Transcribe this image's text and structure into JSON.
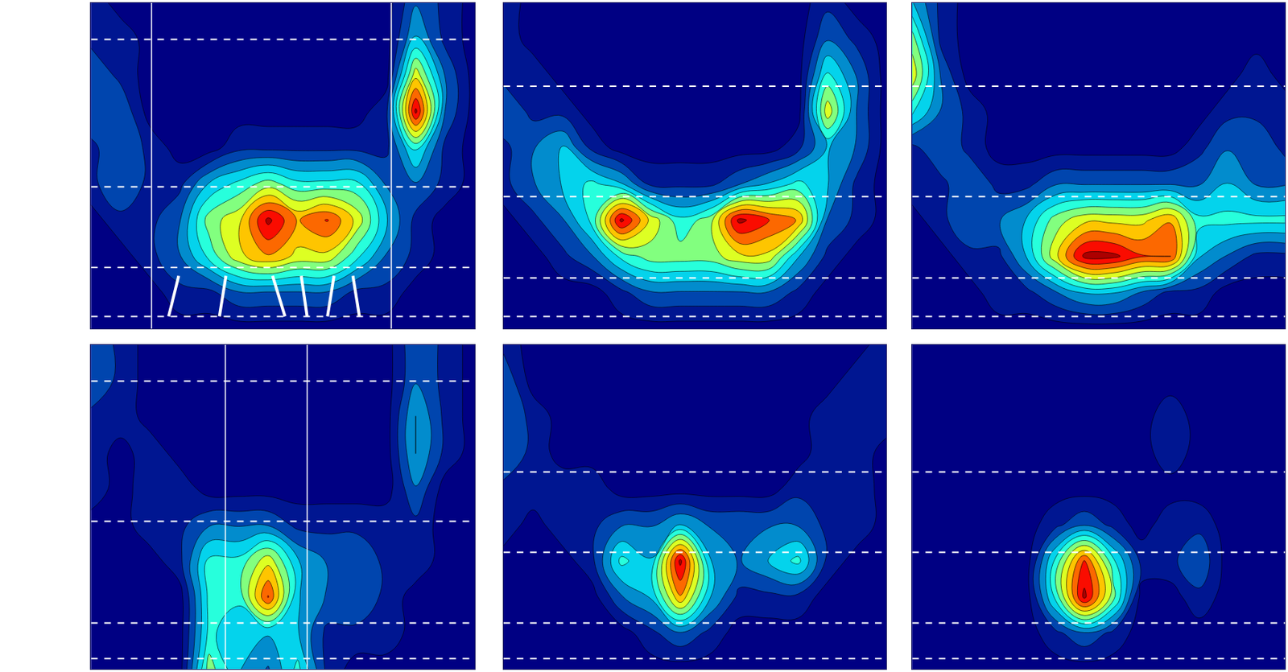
{
  "chart_data": [
    {
      "type": "contour",
      "xlim": [
        0,
        13
      ],
      "ylim": [
        0,
        9
      ],
      "zlim": [
        0,
        10
      ],
      "tick_labels": false,
      "hlines": [
        7.99,
        3.92,
        1.69,
        0.34
      ],
      "vlines": [
        2.05,
        10.17
      ],
      "strokes": [
        [
          2.63,
          0.34,
          2.97,
          1.46
        ],
        [
          4.35,
          0.34,
          4.57,
          1.46
        ],
        [
          6.57,
          0.34,
          6.15,
          1.46
        ],
        [
          7.32,
          0.34,
          7.12,
          1.46
        ],
        [
          8.01,
          0.34,
          8.23,
          1.46
        ],
        [
          9.09,
          0.34,
          8.87,
          1.46
        ]
      ],
      "cells": [
        [
          0,
          0,
          0,
          0,
          0,
          0,
          0,
          0,
          0,
          0,
          0,
          0,
          0,
          0
        ],
        [
          0,
          0,
          0,
          1,
          1,
          2,
          2,
          2,
          2,
          1,
          1,
          0,
          0,
          0
        ],
        [
          0,
          0,
          1,
          2,
          4,
          6,
          7,
          6,
          6,
          4,
          2,
          1,
          0,
          0
        ],
        [
          0,
          1,
          1,
          2,
          5,
          6,
          9,
          7,
          8,
          6,
          3,
          1,
          0,
          0
        ],
        [
          1,
          2,
          1,
          1,
          3,
          4,
          5,
          4,
          4,
          4,
          2,
          2,
          1,
          0
        ],
        [
          1,
          2,
          1,
          0,
          0,
          1,
          1,
          1,
          1,
          1,
          1,
          4,
          1,
          0
        ],
        [
          2,
          2,
          0,
          0,
          0,
          0,
          0,
          0,
          0,
          0,
          1,
          9,
          2,
          0
        ],
        [
          2,
          1,
          0,
          0,
          0,
          0,
          0,
          0,
          0,
          0,
          0,
          6,
          2,
          0
        ],
        [
          1,
          1,
          0,
          0,
          0,
          0,
          0,
          0,
          0,
          0,
          0,
          3,
          1,
          0
        ],
        [
          1,
          0,
          0,
          0,
          0,
          0,
          0,
          0,
          0,
          0,
          0,
          2,
          1,
          0
        ]
      ]
    },
    {
      "type": "contour",
      "xlim": [
        0,
        13
      ],
      "ylim": [
        0,
        9
      ],
      "zlim": [
        0,
        10
      ],
      "tick_labels": false,
      "hlines": [
        6.7,
        3.65,
        1.4,
        0.34
      ],
      "vlines": [],
      "strokes": [],
      "cells": [
        [
          0,
          0,
          0,
          0,
          0,
          0,
          0,
          0,
          0,
          0,
          0,
          0,
          0,
          0
        ],
        [
          0,
          0,
          0,
          0,
          1,
          2,
          2,
          2,
          2,
          2,
          1,
          0,
          0,
          0
        ],
        [
          0,
          0,
          1,
          2,
          4,
          5,
          5,
          5,
          6,
          6,
          3,
          1,
          0,
          0
        ],
        [
          0,
          1,
          2,
          4,
          9,
          6,
          4,
          5,
          9,
          8,
          7,
          2,
          1,
          0
        ],
        [
          1,
          2,
          3,
          4,
          3,
          1,
          1,
          1,
          2,
          3,
          4,
          3,
          1,
          0
        ],
        [
          1,
          2,
          3,
          1,
          0,
          0,
          0,
          0,
          0,
          0,
          1,
          3,
          2,
          0
        ],
        [
          2,
          1,
          1,
          0,
          0,
          0,
          0,
          0,
          0,
          0,
          0,
          6,
          2,
          0
        ],
        [
          1,
          1,
          0,
          0,
          0,
          0,
          0,
          0,
          0,
          0,
          0,
          4,
          2,
          0
        ],
        [
          1,
          0,
          0,
          0,
          0,
          0,
          0,
          0,
          0,
          0,
          0,
          2,
          1,
          0
        ],
        [
          1,
          0,
          0,
          0,
          0,
          0,
          0,
          0,
          0,
          0,
          0,
          1,
          0,
          0
        ]
      ]
    },
    {
      "type": "contour",
      "xlim": [
        0,
        13
      ],
      "ylim": [
        0,
        9
      ],
      "zlim": [
        0,
        10
      ],
      "tick_labels": false,
      "hlines": [
        6.7,
        3.65,
        1.4,
        0.34
      ],
      "vlines": [],
      "strokes": [],
      "cells": [
        [
          0,
          0,
          0,
          0,
          0,
          0,
          0,
          0,
          0,
          0,
          0,
          0,
          0,
          0
        ],
        [
          0,
          0,
          0,
          1,
          1,
          2,
          3,
          3,
          2,
          1,
          1,
          0,
          0,
          0
        ],
        [
          0,
          0,
          1,
          1,
          3,
          6,
          9,
          9,
          8,
          8,
          3,
          2,
          1,
          1
        ],
        [
          0,
          1,
          2,
          2,
          3,
          5,
          6,
          6,
          6,
          7,
          4,
          4,
          4,
          4
        ],
        [
          1,
          1,
          2,
          1,
          1,
          2,
          2,
          2,
          2,
          2,
          2,
          3,
          2,
          2
        ],
        [
          1,
          2,
          1,
          0,
          0,
          0,
          0,
          0,
          0,
          0,
          1,
          2,
          2,
          1
        ],
        [
          4,
          2,
          1,
          0,
          0,
          0,
          0,
          0,
          0,
          0,
          0,
          1,
          1,
          1
        ],
        [
          6,
          2,
          0,
          0,
          0,
          0,
          0,
          0,
          0,
          0,
          0,
          0,
          1,
          0
        ],
        [
          5,
          1,
          0,
          0,
          0,
          0,
          0,
          0,
          0,
          0,
          0,
          0,
          0,
          0
        ],
        [
          3,
          1,
          0,
          0,
          0,
          0,
          0,
          0,
          0,
          0,
          0,
          0,
          0,
          0
        ]
      ]
    },
    {
      "type": "contour",
      "xlim": [
        0,
        13
      ],
      "ylim": [
        0,
        9
      ],
      "zlim": [
        0,
        10
      ],
      "tick_labels": false,
      "hlines": [
        7.99,
        4.1,
        1.28,
        0.29
      ],
      "vlines": [
        4.55,
        7.32
      ],
      "strokes": [],
      "cells": [
        [
          0,
          0,
          0,
          0,
          5,
          3,
          2,
          4,
          1,
          0,
          0,
          0,
          0,
          0
        ],
        [
          0,
          0,
          0,
          0,
          4,
          3,
          3,
          3,
          1,
          1,
          1,
          0,
          0,
          0
        ],
        [
          0,
          0,
          0,
          0,
          4,
          4,
          8,
          3,
          2,
          2,
          1,
          0,
          0,
          0
        ],
        [
          0,
          0,
          0,
          1,
          4,
          4,
          6,
          3,
          2,
          2,
          1,
          1,
          0,
          0
        ],
        [
          0,
          0,
          1,
          1,
          2,
          2,
          2,
          1,
          1,
          1,
          1,
          1,
          0,
          0
        ],
        [
          1,
          0,
          1,
          1,
          0,
          0,
          0,
          0,
          0,
          0,
          0,
          2,
          0,
          0
        ],
        [
          1,
          0,
          1,
          0,
          0,
          0,
          0,
          0,
          0,
          0,
          0,
          3,
          1,
          0
        ],
        [
          1,
          1,
          0,
          0,
          0,
          0,
          0,
          0,
          0,
          0,
          0,
          3,
          1,
          0
        ],
        [
          2,
          1,
          0,
          0,
          0,
          0,
          0,
          0,
          0,
          0,
          0,
          2,
          1,
          0
        ],
        [
          2,
          1,
          0,
          0,
          0,
          0,
          0,
          0,
          0,
          0,
          0,
          2,
          1,
          0
        ]
      ]
    },
    {
      "type": "contour",
      "xlim": [
        0,
        13
      ],
      "ylim": [
        0,
        9
      ],
      "zlim": [
        0,
        10
      ],
      "tick_labels": false,
      "hlines": [
        5.47,
        3.24,
        1.28,
        0.29
      ],
      "vlines": [],
      "strokes": [],
      "cells": [
        [
          0,
          0,
          0,
          0,
          0,
          0,
          0,
          0,
          0,
          0,
          0,
          0,
          0,
          0
        ],
        [
          0,
          0,
          0,
          0,
          0,
          1,
          2,
          1,
          0,
          0,
          0,
          0,
          0,
          0
        ],
        [
          0,
          0,
          0,
          0,
          2,
          3,
          7,
          3,
          1,
          1,
          1,
          0,
          0,
          0
        ],
        [
          0,
          0,
          0,
          1,
          4,
          3,
          9,
          3,
          2,
          3,
          4,
          1,
          0,
          0
        ],
        [
          1,
          0,
          1,
          1,
          2,
          2,
          3,
          2,
          2,
          2,
          2,
          1,
          1,
          0
        ],
        [
          1,
          1,
          1,
          1,
          0,
          0,
          0,
          0,
          0,
          0,
          1,
          1,
          1,
          0
        ],
        [
          2,
          1,
          0,
          0,
          0,
          0,
          0,
          0,
          0,
          0,
          0,
          1,
          1,
          0
        ],
        [
          2,
          1,
          0,
          0,
          0,
          0,
          0,
          0,
          0,
          0,
          0,
          1,
          1,
          1
        ],
        [
          2,
          0,
          0,
          0,
          0,
          0,
          0,
          0,
          0,
          0,
          0,
          0,
          1,
          1
        ],
        [
          1,
          0,
          0,
          0,
          0,
          0,
          0,
          0,
          0,
          0,
          0,
          0,
          0,
          1
        ]
      ]
    },
    {
      "type": "contour",
      "xlim": [
        0,
        13
      ],
      "ylim": [
        0,
        9
      ],
      "zlim": [
        0,
        10
      ],
      "tick_labels": false,
      "hlines": [
        5.47,
        3.24,
        1.28,
        0.29
      ],
      "vlines": [],
      "strokes": [],
      "cells": [
        [
          0,
          0,
          0,
          0,
          0,
          0,
          0,
          0,
          0,
          0,
          0,
          0,
          0,
          0
        ],
        [
          0,
          0,
          0,
          0,
          0,
          1,
          2,
          1,
          0,
          0,
          0,
          0,
          0,
          0
        ],
        [
          0,
          0,
          0,
          0,
          0,
          4,
          9,
          5,
          0,
          0,
          1,
          0,
          0,
          0
        ],
        [
          0,
          0,
          0,
          0,
          0,
          4,
          8,
          4,
          1,
          1,
          2,
          0,
          0,
          0
        ],
        [
          0,
          0,
          0,
          0,
          0,
          1,
          2,
          1,
          0,
          1,
          1,
          0,
          0,
          0
        ],
        [
          0,
          0,
          0,
          0,
          0,
          0,
          0,
          0,
          0,
          0,
          0,
          0,
          0,
          0
        ],
        [
          0,
          0,
          0,
          0,
          0,
          0,
          0,
          0,
          0,
          1,
          0,
          0,
          0,
          0
        ],
        [
          0,
          0,
          0,
          0,
          0,
          0,
          0,
          0,
          0,
          1,
          0,
          0,
          0,
          0
        ],
        [
          0,
          0,
          0,
          0,
          0,
          0,
          0,
          0,
          0,
          0,
          0,
          0,
          0,
          0
        ],
        [
          0,
          0,
          0,
          0,
          0,
          0,
          0,
          0,
          0,
          0,
          0,
          0,
          0,
          0
        ]
      ]
    }
  ]
}
